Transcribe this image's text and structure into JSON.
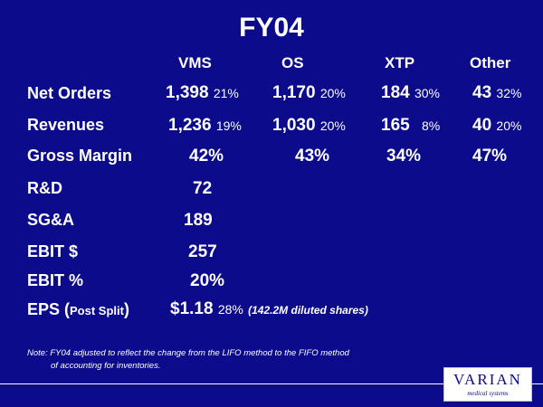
{
  "title": "FY04",
  "columns": [
    "VMS",
    "OS",
    "XTP",
    "Other"
  ],
  "rows": {
    "net_orders": {
      "label": "Net Orders",
      "vms": "1,398",
      "vms_pct": "21%",
      "os": "1,170",
      "os_pct": "20%",
      "xtp": "184",
      "xtp_pct": "30%",
      "other": "43",
      "other_pct": "32%"
    },
    "revenues": {
      "label": "Revenues",
      "vms": "1,236",
      "vms_pct": "19%",
      "os": "1,030",
      "os_pct": "20%",
      "xtp": "165",
      "xtp_pct": "8%",
      "other": "40",
      "other_pct": "20%"
    },
    "gross_margin": {
      "label": "Gross Margin",
      "vms": "42%",
      "os": "43%",
      "xtp": "34%",
      "other": "47%"
    },
    "rd": {
      "label": "R&D",
      "value": "72"
    },
    "sga": {
      "label": "SG&A",
      "value": "189"
    },
    "ebit_dollar": {
      "label": "EBIT $",
      "value": "257"
    },
    "ebit_pct": {
      "label": "EBIT %",
      "value": "20%"
    },
    "eps": {
      "label_main": "EPS (",
      "label_small": "Post Split",
      "label_close": ")",
      "value": "$1.18",
      "pct": "28%",
      "shares": "(142.2M diluted shares)"
    }
  },
  "note": {
    "line1": "Note: FY04 adjusted to reflect the change from the LIFO method to the FIFO method",
    "line2": "of accounting for inventories."
  },
  "logo": {
    "brand": "VARIAN",
    "tagline": "medical systems"
  }
}
